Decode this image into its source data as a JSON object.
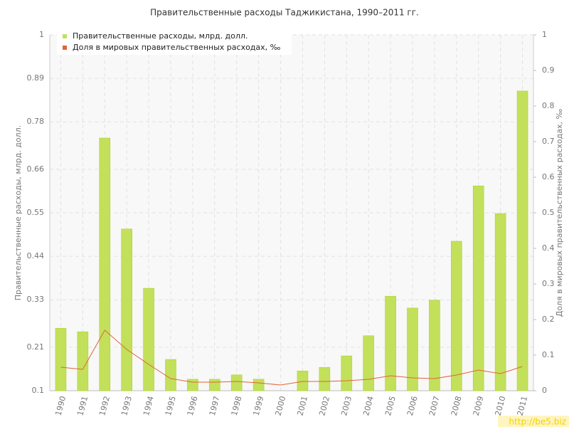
{
  "chart_data": {
    "type": "bar",
    "title": "Правительственные расходы Таджикистана, 1990–2011 гг.",
    "y_label": "Правительственные расходы, млрд. долл.",
    "y2_label": "Доля в мировых правительственных расходах, ‰",
    "categories": [
      "1990",
      "1991",
      "1992",
      "1993",
      "1994",
      "1995",
      "1996",
      "1997",
      "1998",
      "1999",
      "2000",
      "2001",
      "2002",
      "2003",
      "2004",
      "2005",
      "2006",
      "2007",
      "2008",
      "2009",
      "2010",
      "2011"
    ],
    "series": [
      {
        "name": "Правительственные расходы, млрд. долл.",
        "type": "bar",
        "color": "#c3e05a",
        "values": [
          0.258,
          0.249,
          0.739,
          0.509,
          0.359,
          0.179,
          0.129,
          0.129,
          0.14,
          0.129,
          null,
          0.15,
          0.159,
          0.188,
          0.239,
          0.339,
          0.309,
          0.329,
          0.478,
          0.618,
          0.548,
          0.858
        ]
      },
      {
        "name": "Доля в мировых правительственных расходах, ‰",
        "type": "line",
        "axis": "y2",
        "color": "#e0643a",
        "values": [
          0.066,
          0.06,
          0.17,
          0.116,
          0.074,
          0.034,
          0.024,
          0.024,
          0.026,
          0.022,
          0.016,
          0.026,
          0.026,
          0.028,
          0.032,
          0.042,
          0.036,
          0.034,
          0.044,
          0.058,
          0.048,
          0.068
        ]
      }
    ],
    "ylim": [
      0.1,
      1
    ],
    "yticks": [
      0.1,
      0.21,
      0.33,
      0.44,
      0.55,
      0.66,
      0.78,
      0.89,
      1
    ],
    "y2lim": [
      0,
      1
    ],
    "y2ticks": [
      0,
      0.1,
      0.2,
      0.3,
      0.4,
      0.5,
      0.6,
      0.7,
      0.8,
      0.9,
      1
    ],
    "grid": true,
    "legend": "top-left",
    "watermark": "http://be5.biz"
  }
}
